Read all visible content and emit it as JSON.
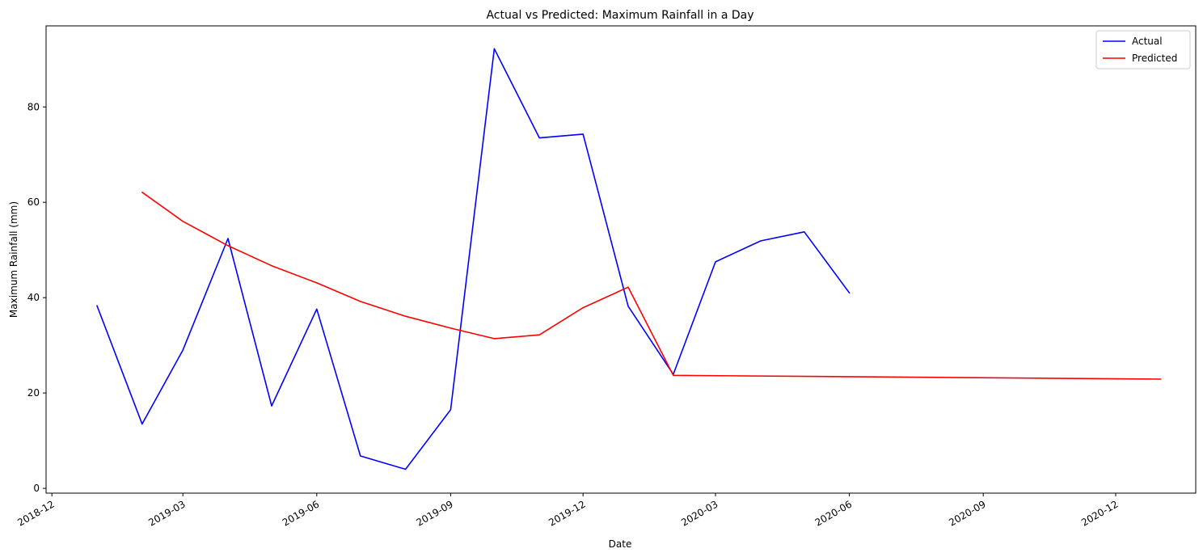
{
  "chart_data": {
    "type": "line",
    "title": "Actual vs Predicted: Maximum Rainfall in a Day",
    "xlabel": "Date",
    "ylabel": "Maximum Rainfall (mm)",
    "xlim": [
      "2018-11-27",
      "2021-01-25"
    ],
    "ylim": [
      -1,
      97
    ],
    "x_ticks": [
      "2018-12-01",
      "2019-03-01",
      "2019-06-01",
      "2019-09-01",
      "2019-12-01",
      "2020-03-01",
      "2020-06-01",
      "2020-09-01",
      "2020-12-01"
    ],
    "x_tick_labels": [
      "2018-12",
      "2019-03",
      "2019-06",
      "2019-09",
      "2019-12",
      "2020-03",
      "2020-06",
      "2020-09",
      "2020-12"
    ],
    "y_ticks": [
      0,
      20,
      40,
      60,
      80
    ],
    "grid": false,
    "legend_position": "top-right",
    "series": [
      {
        "name": "Actual",
        "color": "#0000ff",
        "x": [
          "2019-01-01",
          "2019-02-01",
          "2019-03-01",
          "2019-04-01",
          "2019-05-01",
          "2019-06-01",
          "2019-07-01",
          "2019-08-01",
          "2019-09-01",
          "2019-10-01",
          "2019-11-01",
          "2019-12-01",
          "2020-01-01",
          "2020-02-01",
          "2020-03-01",
          "2020-04-01",
          "2020-05-01",
          "2020-06-01"
        ],
        "values": [
          38.3,
          13.5,
          29.0,
          52.4,
          17.3,
          37.6,
          6.8,
          4.0,
          16.5,
          92.2,
          73.5,
          74.3,
          38.2,
          23.9,
          47.5,
          51.9,
          53.8,
          41.0
        ]
      },
      {
        "name": "Predicted",
        "color": "#ff0000",
        "x": [
          "2019-02-01",
          "2019-03-01",
          "2019-04-01",
          "2019-05-01",
          "2019-06-01",
          "2019-07-01",
          "2019-08-01",
          "2019-09-01",
          "2019-10-01",
          "2019-11-01",
          "2019-12-01",
          "2020-01-01",
          "2020-02-01",
          "2021-01-01"
        ],
        "values": [
          62.1,
          56.0,
          50.9,
          46.7,
          43.1,
          39.2,
          36.1,
          33.6,
          31.4,
          32.2,
          37.9,
          42.2,
          23.7,
          22.9
        ]
      }
    ]
  }
}
